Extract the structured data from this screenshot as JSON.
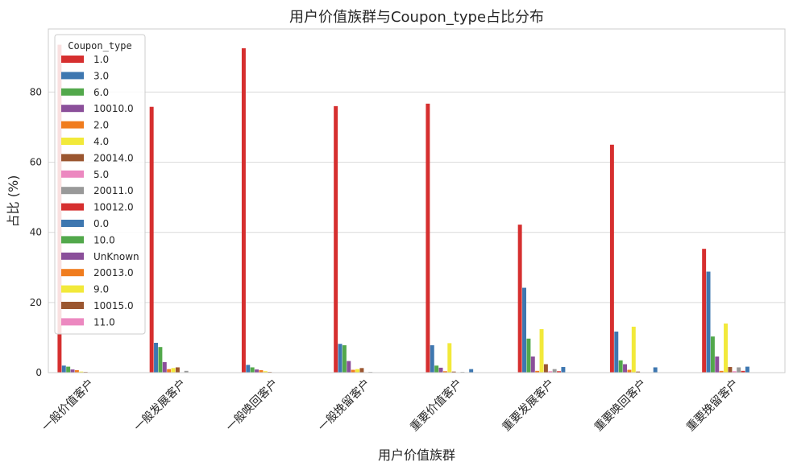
{
  "chart_data": {
    "type": "bar",
    "title": "用户价值族群与Coupon_type占比分布",
    "xlabel": "用户价值族群",
    "ylabel": "占比 (%)",
    "ylim": [
      0,
      98
    ],
    "yticks": [
      0,
      20,
      40,
      60,
      80
    ],
    "grid": true,
    "legend_title": "Coupon_type",
    "legend_position": "top-left",
    "categories": [
      "一般价值客户",
      "一般发展客户",
      "一般唤回客户",
      "一般挽留客户",
      "重要价值客户",
      "重要发展客户",
      "重要唤回客户",
      "重要挽留客户"
    ],
    "series": [
      {
        "name": "1.0",
        "color": "#d62f2f",
        "values": [
          93.5,
          75.8,
          92.5,
          76.0,
          76.7,
          42.2,
          65.0,
          35.3
        ]
      },
      {
        "name": "3.0",
        "color": "#3e77b0",
        "values": [
          2.0,
          8.5,
          2.2,
          8.2,
          7.8,
          24.2,
          11.7,
          28.8
        ]
      },
      {
        "name": "6.0",
        "color": "#52a84b",
        "values": [
          1.7,
          7.3,
          1.5,
          7.8,
          2.0,
          9.7,
          3.5,
          10.3
        ]
      },
      {
        "name": "10010.0",
        "color": "#8b4f9a",
        "values": [
          0.9,
          3.0,
          0.9,
          3.3,
          1.4,
          4.6,
          2.4,
          4.6
        ]
      },
      {
        "name": "2.0",
        "color": "#f07c1e",
        "values": [
          0.7,
          1.0,
          0.7,
          0.8,
          0.4,
          0.5,
          0.8,
          0.5
        ]
      },
      {
        "name": "4.0",
        "color": "#f2e93a",
        "values": [
          0.3,
          1.3,
          0.4,
          1.0,
          8.4,
          12.4,
          13.1,
          14.0
        ]
      },
      {
        "name": "20014.0",
        "color": "#9b5630",
        "values": [
          0.2,
          1.5,
          0.2,
          1.3,
          0.3,
          2.4,
          0.3,
          1.6
        ]
      },
      {
        "name": "5.0",
        "color": "#ec88c0",
        "values": [
          0.1,
          0.1,
          0.1,
          0.1,
          0.1,
          0.4,
          0.1,
          0.4
        ]
      },
      {
        "name": "20011.0",
        "color": "#999999",
        "values": [
          0.1,
          0.5,
          0.1,
          0.2,
          0.2,
          1.0,
          0.1,
          1.5
        ]
      },
      {
        "name": "10012.0",
        "color": "#d62f2f",
        "values": [
          0.1,
          0.1,
          0.1,
          0.1,
          0.1,
          0.4,
          0.1,
          0.5
        ]
      },
      {
        "name": "0.0",
        "color": "#3e77b0",
        "values": [
          0.1,
          0.1,
          0.1,
          0.1,
          1.0,
          1.6,
          1.5,
          1.7
        ]
      },
      {
        "name": "10.0",
        "color": "#52a84b",
        "values": [
          0,
          0,
          0,
          0,
          0,
          0,
          0,
          0
        ]
      },
      {
        "name": "UnKnown",
        "color": "#8b4f9a",
        "values": [
          0,
          0,
          0,
          0,
          0,
          0,
          0,
          0
        ]
      },
      {
        "name": "20013.0",
        "color": "#f07c1e",
        "values": [
          0,
          0,
          0,
          0,
          0,
          0,
          0,
          0
        ]
      },
      {
        "name": "9.0",
        "color": "#f2e93a",
        "values": [
          0,
          0,
          0,
          0,
          0,
          0,
          0,
          0
        ]
      },
      {
        "name": "10015.0",
        "color": "#9b5630",
        "values": [
          0,
          0,
          0,
          0,
          0,
          0,
          0,
          0
        ]
      },
      {
        "name": "11.0",
        "color": "#ec88c0",
        "values": [
          0,
          0,
          0,
          0,
          0,
          0,
          0,
          0
        ]
      }
    ]
  }
}
